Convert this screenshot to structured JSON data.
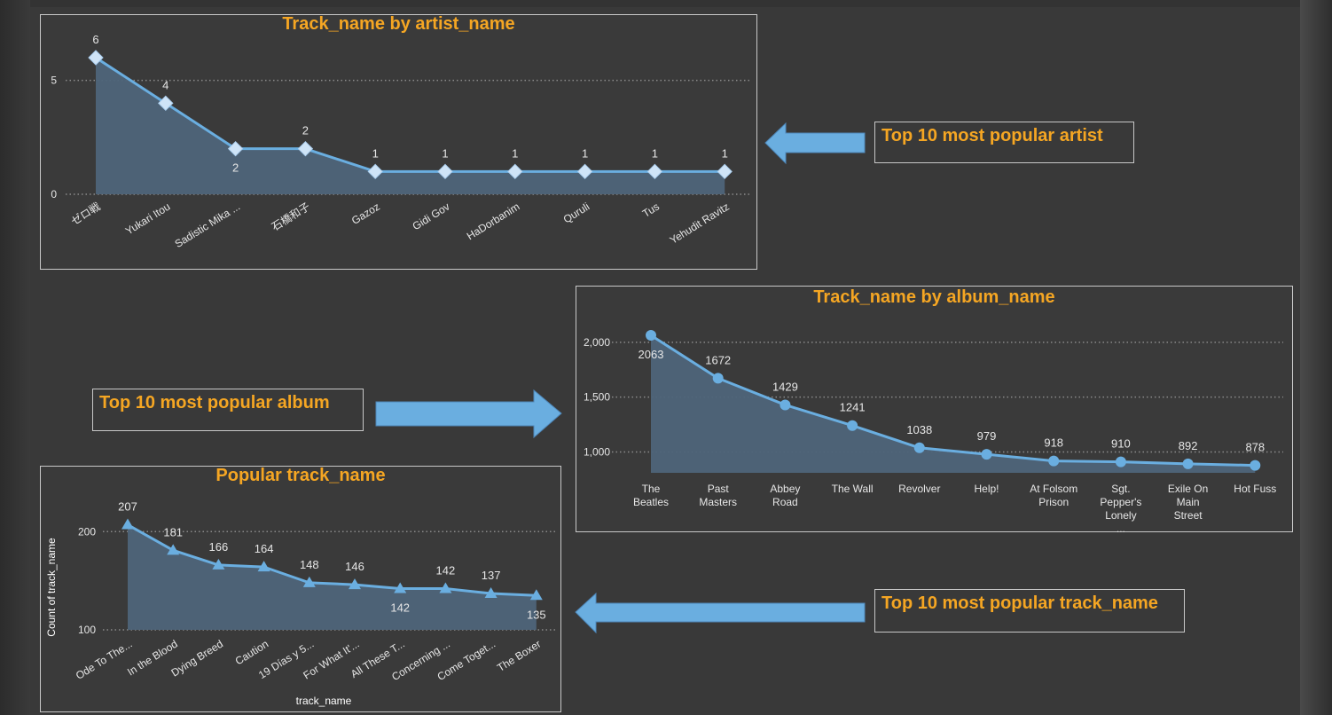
{
  "callouts": {
    "artist": "Top 10 most popular artist",
    "album": "Top 10 most popular album",
    "track": "Top 10 most popular track_name"
  },
  "colors": {
    "background": "#393939",
    "title": "#f5a623",
    "line": "#6aaee0",
    "area": "#4e6479",
    "arrow": "#6aaee0"
  },
  "chart_data": [
    {
      "id": "artist",
      "type": "area",
      "marker": "diamond",
      "title": "Track_name by artist_name",
      "xlabel": "",
      "ylabel": "",
      "categories": [
        "ゼロ戦",
        "Yukari Itou",
        "Sadistic Mika ...",
        "石橋和子",
        "Gazoz",
        "Gidi Gov",
        "HaDorbanim",
        "Quruli",
        "Tus",
        "Yehudit Ravitz"
      ],
      "values": [
        6,
        4,
        2,
        2,
        1,
        1,
        1,
        1,
        1,
        1
      ],
      "yticks": [
        0,
        5
      ],
      "ylim": [
        0,
        6
      ],
      "grid": true
    },
    {
      "id": "album",
      "type": "area",
      "marker": "circle",
      "title": "Track_name by album_name",
      "xlabel": "",
      "ylabel": "",
      "categories": [
        "The Beatles",
        "Past Masters",
        "Abbey Road",
        "The Wall",
        "Revolver",
        "Help!",
        "At Folsom Prison",
        "Sgt. Pepper's Lonely ...",
        "Exile On Main Street",
        "Hot Fuss"
      ],
      "values": [
        2063,
        1672,
        1429,
        1241,
        1038,
        979,
        918,
        910,
        892,
        878
      ],
      "yticks": [
        1000,
        1500,
        2000
      ],
      "ytick_labels": [
        "1,000",
        "1,500",
        "2,000"
      ],
      "ylim": [
        810,
        2120
      ],
      "grid": true
    },
    {
      "id": "track",
      "type": "area",
      "marker": "triangle",
      "title": "Popular track_name",
      "xlabel": "track_name",
      "ylabel": "Count of track_name",
      "categories": [
        "Ode To The...",
        "In the Blood",
        "Dying Breed",
        "Caution",
        "19 Días y 5...",
        "For What It'...",
        "All These T...",
        "Concerning ...",
        "Come Toget...",
        "The Boxer"
      ],
      "values": [
        207,
        181,
        166,
        164,
        148,
        146,
        142,
        142,
        137,
        135
      ],
      "yticks": [
        100,
        200
      ],
      "ylim": [
        100,
        212
      ],
      "grid": true
    }
  ]
}
